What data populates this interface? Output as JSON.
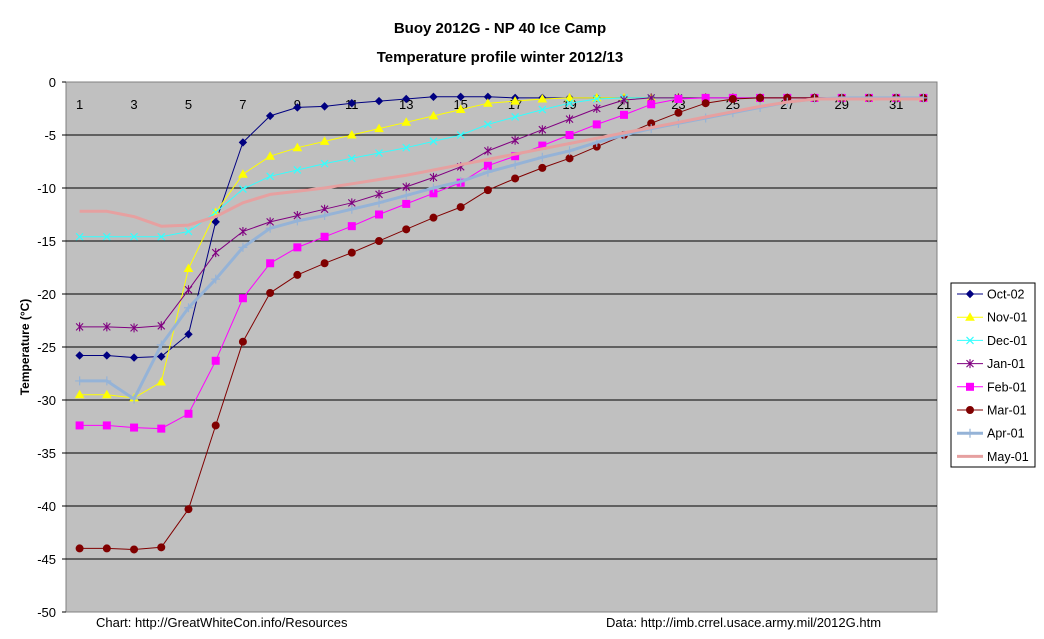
{
  "chart_data": {
    "type": "line",
    "title": "Buoy 2012G  - NP 40 Ice Camp",
    "subtitle": "Temperature profile winter 2012/13",
    "xlabel": "",
    "ylabel": "Temperature (°C)",
    "ylim": [
      -50,
      0
    ],
    "yticks": [
      0,
      -5,
      -10,
      -15,
      -20,
      -25,
      -30,
      -35,
      -40,
      -45,
      -50
    ],
    "xlim": [
      1,
      32
    ],
    "xtick_labels": [
      1,
      3,
      5,
      7,
      9,
      11,
      13,
      15,
      17,
      19,
      21,
      23,
      25,
      27,
      29,
      31
    ],
    "grid": "horizontal",
    "background": "#c0c0c0",
    "legend_position": "right",
    "x": [
      1,
      2,
      3,
      4,
      5,
      6,
      7,
      8,
      9,
      10,
      11,
      12,
      13,
      14,
      15,
      16,
      17,
      18,
      19,
      20,
      21,
      22,
      23,
      24,
      25,
      26,
      27,
      28,
      29,
      30,
      31,
      32
    ],
    "series": [
      {
        "name": "Oct-02",
        "color": "#000080",
        "marker": "diamond",
        "values": [
          -25.8,
          -25.8,
          -26.0,
          -25.9,
          -23.8,
          -13.2,
          -5.7,
          -3.2,
          -2.4,
          -2.3,
          -2.0,
          -1.8,
          -1.6,
          -1.4,
          -1.4,
          -1.4,
          -1.5,
          -1.5,
          -1.5,
          -1.5,
          -1.5,
          -1.5,
          -1.5,
          -1.5,
          -1.5,
          -1.5,
          -1.5,
          -1.5,
          -1.5,
          -1.5,
          -1.5,
          -1.5
        ]
      },
      {
        "name": "Nov-01",
        "color": "#ffff00",
        "marker": "triangle",
        "values": [
          -29.5,
          -29.5,
          -29.8,
          -28.3,
          -17.6,
          -12.3,
          -8.7,
          -7.0,
          -6.2,
          -5.6,
          -5.0,
          -4.4,
          -3.8,
          -3.2,
          -2.6,
          -2.0,
          -1.8,
          -1.6,
          -1.5,
          -1.5,
          -1.5,
          -1.5,
          -1.5,
          -1.5,
          -1.5,
          -1.5,
          -1.5,
          -1.5,
          -1.5,
          -1.5,
          -1.5,
          -1.5
        ]
      },
      {
        "name": "Dec-01",
        "color": "#33ffff",
        "marker": "x",
        "values": [
          -14.6,
          -14.6,
          -14.6,
          -14.6,
          -14.1,
          -12.3,
          -10.1,
          -8.9,
          -8.3,
          -7.7,
          -7.2,
          -6.7,
          -6.2,
          -5.6,
          -5.0,
          -4.0,
          -3.3,
          -2.6,
          -2.0,
          -1.6,
          -1.5,
          -1.5,
          -1.5,
          -1.5,
          -1.5,
          -1.5,
          -1.5,
          -1.5,
          -1.5,
          -1.5,
          -1.5,
          -1.5
        ]
      },
      {
        "name": "Jan-01",
        "color": "#800080",
        "marker": "star",
        "values": [
          -23.1,
          -23.1,
          -23.2,
          -23.0,
          -19.6,
          -16.1,
          -14.1,
          -13.2,
          -12.6,
          -12.0,
          -11.4,
          -10.6,
          -9.9,
          -9.0,
          -8.0,
          -6.5,
          -5.5,
          -4.5,
          -3.5,
          -2.5,
          -1.7,
          -1.5,
          -1.5,
          -1.5,
          -1.5,
          -1.5,
          -1.5,
          -1.5,
          -1.5,
          -1.5,
          -1.5,
          -1.5
        ]
      },
      {
        "name": "Feb-01",
        "color": "#ff00ff",
        "marker": "square",
        "values": [
          -32.4,
          -32.4,
          -32.6,
          -32.7,
          -31.3,
          -26.3,
          -20.4,
          -17.1,
          -15.6,
          -14.6,
          -13.6,
          -12.5,
          -11.5,
          -10.5,
          -9.5,
          -7.9,
          -7.0,
          -6.0,
          -5.0,
          -4.0,
          -3.1,
          -2.1,
          -1.6,
          -1.5,
          -1.5,
          -1.5,
          -1.5,
          -1.5,
          -1.5,
          -1.5,
          -1.5,
          -1.5
        ]
      },
      {
        "name": "Mar-01",
        "color": "#800000",
        "marker": "circle",
        "values": [
          -44.0,
          -44.0,
          -44.1,
          -43.9,
          -40.3,
          -32.4,
          -24.5,
          -19.9,
          -18.2,
          -17.1,
          -16.1,
          -15.0,
          -13.9,
          -12.8,
          -11.8,
          -10.2,
          -9.1,
          -8.1,
          -7.2,
          -6.1,
          -5.0,
          -3.9,
          -2.9,
          -2.0,
          -1.6,
          -1.5,
          -1.5,
          -1.5,
          -1.5,
          -1.5,
          -1.5,
          -1.5
        ]
      },
      {
        "name": "Apr-01",
        "color": "#95b3d7",
        "marker": "plus",
        "values": [
          -28.2,
          -28.2,
          -29.9,
          -24.8,
          -21.3,
          -18.6,
          -15.6,
          -13.8,
          -13.1,
          -12.6,
          -12.0,
          -11.4,
          -10.7,
          -10.0,
          -9.4,
          -8.5,
          -7.8,
          -7.1,
          -6.5,
          -5.7,
          -5.0,
          -4.4,
          -3.9,
          -3.4,
          -2.9,
          -2.4,
          -1.9,
          -1.6,
          -1.5,
          -1.5,
          -1.5,
          -1.5
        ]
      },
      {
        "name": "May-01",
        "color": "#e6a0a0",
        "marker": "none",
        "values": [
          -12.2,
          -12.2,
          -12.7,
          -13.6,
          -13.5,
          -12.7,
          -11.4,
          -10.6,
          -10.3,
          -10.0,
          -9.6,
          -9.2,
          -8.8,
          -8.3,
          -7.8,
          -7.3,
          -6.8,
          -6.3,
          -5.8,
          -5.3,
          -4.8,
          -4.3,
          -3.8,
          -3.3,
          -2.8,
          -2.3,
          -1.9,
          -1.6,
          -1.6,
          -1.6,
          -1.6,
          -1.6
        ]
      }
    ],
    "annotations": {
      "chart_source": "Chart: http://GreatWhiteCon.info/Resources",
      "data_source": "Data:  http://imb.crrel.usace.army.mil/2012G.htm"
    }
  }
}
